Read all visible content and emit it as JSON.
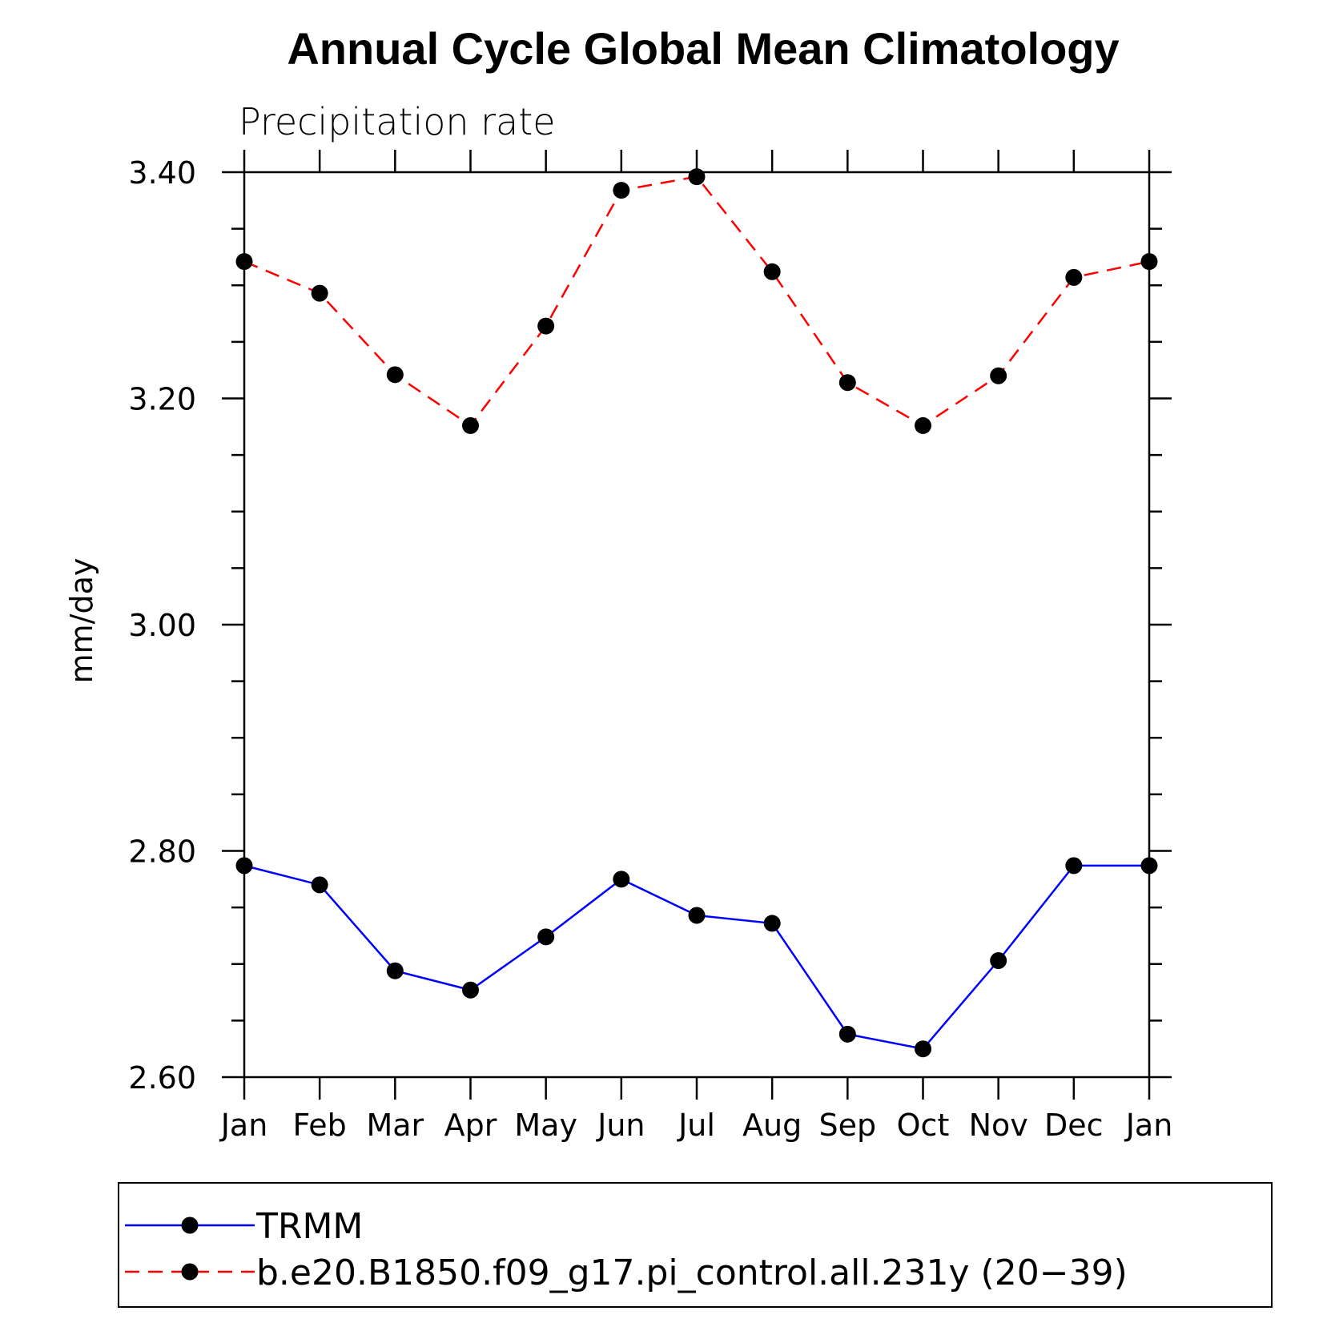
{
  "chart_data": {
    "type": "line",
    "title": "Annual Cycle Global Mean Climatology",
    "subtitle": "Precipitation rate",
    "ylabel": "mm/day",
    "xlabel": "",
    "ylim": [
      2.6,
      3.4
    ],
    "yticks": [
      "2.60",
      "2.80",
      "3.00",
      "3.20",
      "3.40"
    ],
    "categories": [
      "Jan",
      "Feb",
      "Mar",
      "Apr",
      "May",
      "Jun",
      "Jul",
      "Aug",
      "Sep",
      "Oct",
      "Nov",
      "Dec",
      "Jan"
    ],
    "series": [
      {
        "name": "TRMM",
        "color": "#0000ff",
        "dash": "solid",
        "values": [
          2.787,
          2.77,
          2.694,
          2.677,
          2.724,
          2.775,
          2.743,
          2.736,
          2.638,
          2.625,
          2.703,
          2.787,
          2.787
        ]
      },
      {
        "name": "b.e20.B1850.f09_g17.pi_control.all.231y (20−39)",
        "color": "#ff0000",
        "dash": "dashed",
        "values": [
          3.321,
          3.293,
          3.221,
          3.176,
          3.264,
          3.384,
          3.396,
          3.312,
          3.214,
          3.176,
          3.22,
          3.307,
          3.321
        ]
      }
    ],
    "legend_position": "bottom"
  }
}
